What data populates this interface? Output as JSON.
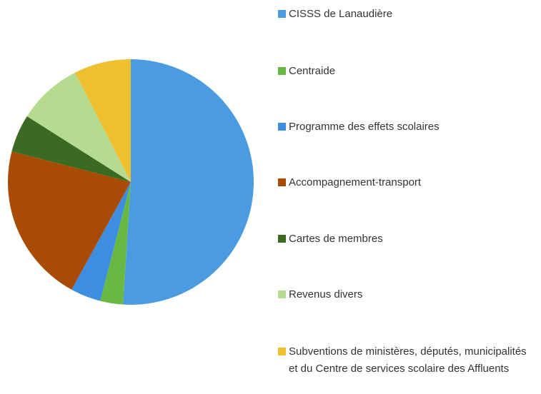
{
  "chart_data": {
    "type": "pie",
    "categories": [
      "CISSS de Lanaudière",
      "Centraide",
      "Programme des effets scolaires",
      "Accompagnement-transport",
      "Cartes de membres",
      "Revenus divers",
      "Subventions de ministères, députés, municipalités et du Centre de services scolaire des Affluents"
    ],
    "values": [
      51,
      3,
      4,
      21,
      5,
      8.5,
      7.5
    ],
    "colors": [
      "#4b9be0",
      "#6ab844",
      "#3d8ee0",
      "#a84c05",
      "#3b6b22",
      "#b4db90",
      "#eebf2f"
    ]
  }
}
